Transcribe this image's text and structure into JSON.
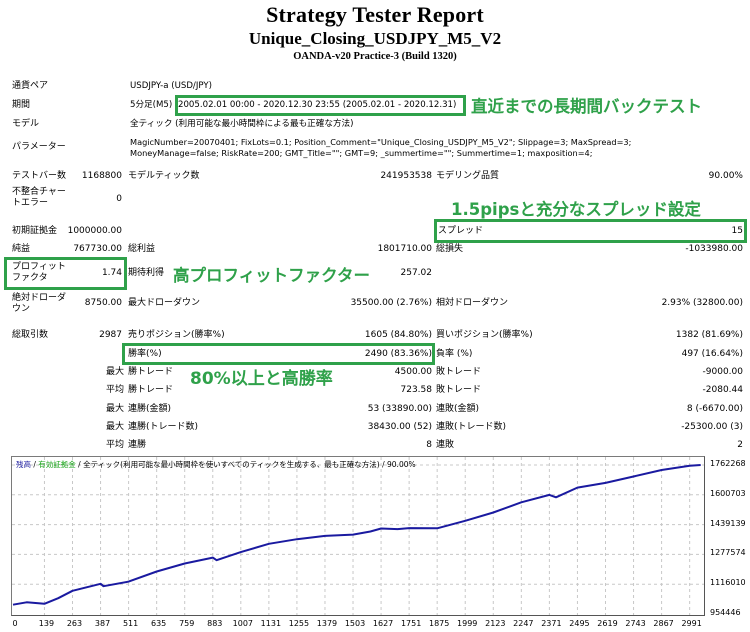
{
  "header": {
    "title": "Strategy Tester Report",
    "ea_name": "Unique_Closing_USDJPY_M5_V2",
    "server": "OANDA-v20 Practice-3 (Build 1320)"
  },
  "info": {
    "symbol_label": "通貨ペア",
    "symbol_value": "USDJPY-a (USD/JPY)",
    "period_label": "期間",
    "period_tf": "5分足(M5)",
    "period_value": "2005.02.01 00:00 - 2020.12.30 23:55 (2005.02.01 - 2020.12.31)",
    "model_label": "モデル",
    "model_value": "全ティック (利用可能な最小時間枠による最も正確な方法)",
    "params_label": "パラメーター",
    "params_line1": "MagicNumber=20070401; FixLots=0.1; Position_Comment=\"Unique_Closing_USDJPY_M5_V2\"; Slippage=3; MaxSpread=3;",
    "params_line2": "MoneyManage=false; RiskRate=200; GMT_Title=\"\"; GMT=9; _summertime=\"\"; Summertime=1; maxposition=4;"
  },
  "stats": {
    "bars_label": "テストバー数",
    "bars_value": "1168800",
    "ticks_label": "モデルティック数",
    "ticks_value": "241953538",
    "quality_label": "モデリング品質",
    "quality_value": "90.00%",
    "mismatch_label_1": "不整合チャー",
    "mismatch_label_2": "トエラー",
    "mismatch_value": "0",
    "deposit_label": "初期証拠金",
    "deposit_value": "1000000.00",
    "spread_label": "スプレッド",
    "spread_value": "15",
    "net_label": "純益",
    "net_value": "767730.00",
    "gross_profit_label": "総利益",
    "gross_profit_value": "1801710.00",
    "gross_loss_label": "総損失",
    "gross_loss_value": "-1033980.00",
    "pf_label_1": "プロフィット",
    "pf_label_2": "ファクタ",
    "pf_value": "1.74",
    "expected_label": "期待利得",
    "expected_value": "257.02",
    "abs_dd_label_1": "絶対ドローダ",
    "abs_dd_label_2": "ウン",
    "abs_dd_value": "8750.00",
    "max_dd_label": "最大ドローダウン",
    "max_dd_value": "35500.00 (2.76%)",
    "rel_dd_label": "相対ドローダウン",
    "rel_dd_value": "2.93% (32800.00)",
    "trades_label": "総取引数",
    "trades_value": "2987",
    "short_label": "売りポジション(勝率%)",
    "short_value": "1605 (84.80%)",
    "long_label": "買いポジション(勝率%)",
    "long_value": "1382 (81.69%)",
    "win_label": "勝率(%)",
    "win_value": "2490 (83.36%)",
    "loss_label": "負率 (%)",
    "loss_value": "497 (16.64%)",
    "max_prefix": "最大",
    "avg_prefix": "平均",
    "largest_win_label": "勝トレード",
    "largest_win_value": "4500.00",
    "largest_loss_label": "敗トレード",
    "largest_loss_value": "-9000.00",
    "avg_win_label": "勝トレード",
    "avg_win_value": "723.58",
    "avg_loss_label": "敗トレード",
    "avg_loss_value": "-2080.44",
    "max_cons_wins_money_label": "連勝(金額)",
    "max_cons_wins_money_value": "53 (33890.00)",
    "max_cons_losses_money_label": "連敗(金額)",
    "max_cons_losses_money_value": "8 (-6670.00)",
    "max_cons_profit_label": "連勝(トレード数)",
    "max_cons_profit_value": "38430.00 (52)",
    "max_cons_loss_label": "連敗(トレード数)",
    "max_cons_loss_value": "-25300.00 (3)",
    "avg_cons_wins_label": "連勝",
    "avg_cons_wins_value": "8",
    "avg_cons_losses_label": "連敗",
    "avg_cons_losses_value": "2"
  },
  "annotations": {
    "period_note": "直近までの長期間バックテスト",
    "spread_note": "1.5pipsと充分なスプレッド設定",
    "pf_note": "高プロフィットファクター",
    "winrate_note": "80%以上と高勝率",
    "box_color": "#2fa14a"
  },
  "chart_legend": {
    "balance": "残高",
    "sep1": " / ",
    "equity": "有効証拠金",
    "sep2": " / ",
    "model": "全ティック(利用可能な最小時間枠を使いすべてのティックを生成する、最も正確な方法) / 90.00%"
  },
  "chart_data": {
    "type": "line",
    "title": "残高 / 有効証拠金",
    "xlabel": "",
    "ylabel": "",
    "x_ticks": [
      "0",
      "139",
      "263",
      "387",
      "511",
      "635",
      "759",
      "883",
      "1007",
      "1131",
      "1255",
      "1379",
      "1503",
      "1627",
      "1751",
      "1875",
      "1999",
      "2123",
      "2247",
      "2371",
      "2495",
      "2619",
      "2743",
      "2867",
      "2991"
    ],
    "y_ticks": [
      "1762268",
      "1600703",
      "1439139",
      "1277574",
      "1116010",
      "954446"
    ],
    "ylim": [
      954446,
      1762268
    ],
    "xlim": [
      0,
      3050
    ],
    "grid": true,
    "series": [
      {
        "name": "残高",
        "color": "#1a1aa0",
        "x": [
          0,
          60,
          139,
          200,
          263,
          387,
          400,
          511,
          635,
          759,
          883,
          900,
          1007,
          1131,
          1255,
          1379,
          1503,
          1580,
          1627,
          1700,
          1751,
          1875,
          1999,
          2123,
          2247,
          2371,
          2400,
          2495,
          2619,
          2743,
          2867,
          2991,
          3040
        ],
        "y": [
          1005000,
          1018000,
          1010000,
          1040000,
          1080000,
          1118000,
          1105000,
          1130000,
          1185000,
          1228000,
          1260000,
          1246000,
          1290000,
          1335000,
          1360000,
          1378000,
          1385000,
          1402000,
          1418000,
          1415000,
          1420000,
          1419000,
          1460000,
          1505000,
          1560000,
          1600000,
          1587000,
          1640000,
          1665000,
          1700000,
          1735000,
          1758000,
          1762268
        ]
      }
    ]
  }
}
